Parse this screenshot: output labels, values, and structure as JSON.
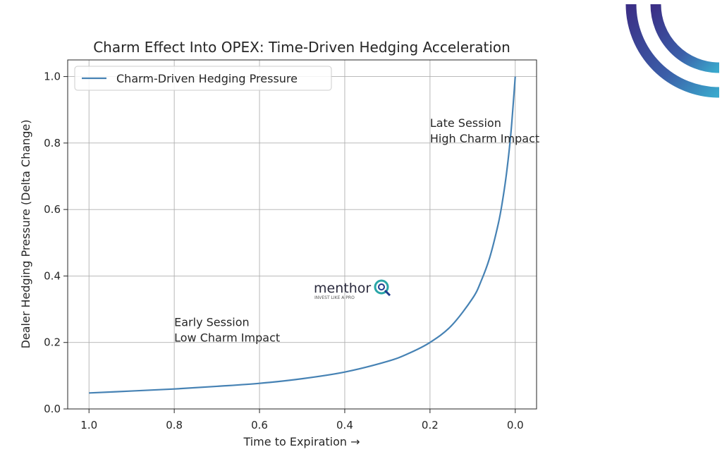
{
  "chart_data": {
    "type": "line",
    "title": "Charm Effect Into OPEX: Time-Driven Hedging Acceleration",
    "xlabel": "Time to Expiration →",
    "ylabel": "Dealer Hedging Pressure (Delta Change)",
    "xlim": [
      1.05,
      -0.05
    ],
    "x_inverted": true,
    "ylim": [
      0,
      1.05
    ],
    "x_ticks": [
      1.0,
      0.8,
      0.6,
      0.4,
      0.2,
      0.0
    ],
    "x_tick_labels": [
      "1.0",
      "0.8",
      "0.6",
      "0.4",
      "0.2",
      "0.0"
    ],
    "y_ticks": [
      0.0,
      0.2,
      0.4,
      0.6,
      0.8,
      1.0
    ],
    "y_tick_labels": [
      "0.0",
      "0.2",
      "0.4",
      "0.6",
      "0.8",
      "1.0"
    ],
    "grid": true,
    "legend_placement": "top-left",
    "series": [
      {
        "name": "Charm-Driven Hedging Pressure",
        "color": "#4682b4",
        "x": [
          1.0,
          0.9,
          0.8,
          0.7,
          0.6,
          0.5,
          0.4,
          0.3,
          0.25,
          0.2,
          0.15,
          0.1,
          0.08,
          0.06,
          0.04,
          0.03,
          0.02,
          0.01,
          0.0
        ],
        "y": [
          0.048,
          0.054,
          0.06,
          0.068,
          0.077,
          0.091,
          0.111,
          0.143,
          0.167,
          0.2,
          0.25,
          0.333,
          0.385,
          0.455,
          0.556,
          0.625,
          0.714,
          0.833,
          1.0
        ]
      }
    ],
    "annotations": [
      {
        "lines": [
          "Early Session",
          "Low Charm Impact"
        ],
        "x": 0.8,
        "y": 0.2
      },
      {
        "lines": [
          "Late Session",
          "High Charm Impact"
        ],
        "x": 0.2,
        "y": 0.8
      }
    ]
  },
  "watermark": {
    "brand": "menthor",
    "tagline": "INVEST LIKE A PRO"
  },
  "colors": {
    "arc_dark": "#3b2f86",
    "arc_light": "#3aa0c8",
    "logo_teal": "#2aa6a8"
  }
}
